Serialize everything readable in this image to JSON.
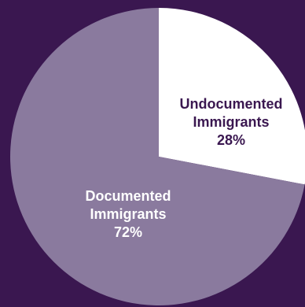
{
  "chart_data": {
    "type": "pie",
    "title": "",
    "slices": [
      {
        "name": "Undocumented Immigrants",
        "label_lines": [
          "Undocumented",
          "Immigrants"
        ],
        "value": 28,
        "value_label": "28%",
        "color": "#ffffff",
        "label_color": "#3a1750"
      },
      {
        "name": "Documented Immigrants",
        "label_lines": [
          "Documented",
          "Immigrants"
        ],
        "value": 72,
        "value_label": "72%",
        "color": "#8a7a9e",
        "label_color": "#ffffff"
      }
    ],
    "start_angle_deg": 0,
    "direction": "clockwise",
    "legend": "none"
  },
  "colors": {
    "background": "#3a1750"
  }
}
